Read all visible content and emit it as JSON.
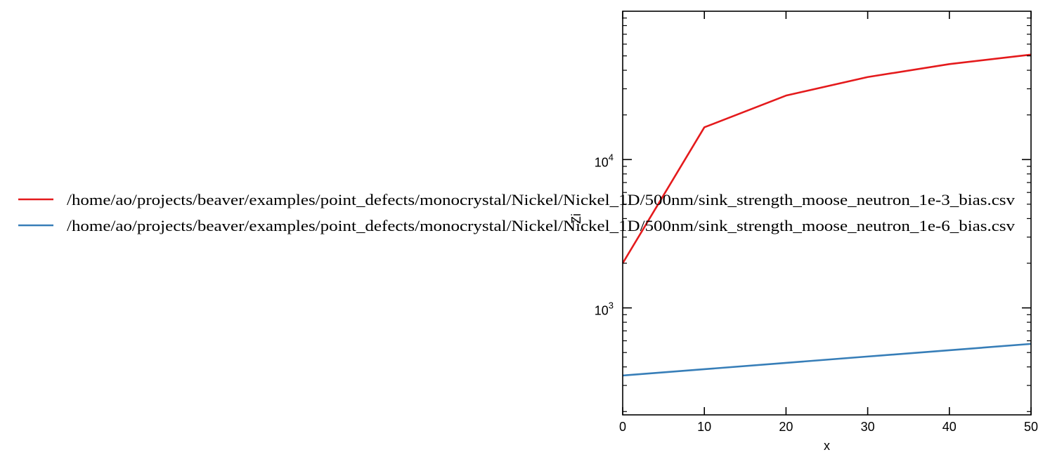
{
  "chart_data": {
    "type": "line",
    "xlabel": "x",
    "ylabel": "Zi",
    "xlim": [
      0,
      50
    ],
    "ylim": [
      190,
      100000
    ],
    "yscale": "log",
    "grid": false,
    "legend_position": "left",
    "x_ticks": [
      "0",
      "10",
      "20",
      "30",
      "40",
      "50"
    ],
    "y_ticks": [
      {
        "base": "10",
        "exp": "3",
        "value": 1000
      },
      {
        "base": "10",
        "exp": "4",
        "value": 10000
      }
    ],
    "series": [
      {
        "name": "/home/ao/projects/beaver/examples/point_defects/monocrystal/Nickel/Nickel_1D/500nm/sink_strength_moose_neutron_1e-3_bias.csv",
        "color": "#e41a1c",
        "x": [
          0,
          10,
          20,
          30,
          40,
          50
        ],
        "y": [
          2000,
          16500,
          27000,
          36000,
          44000,
          51000
        ]
      },
      {
        "name": "/home/ao/projects/beaver/examples/point_defects/monocrystal/Nickel/Nickel_1D/500nm/sink_strength_moose_neutron_1e-6_bias.csv",
        "color": "#377eb8",
        "x": [
          0,
          10,
          20,
          30,
          40,
          50
        ],
        "y": [
          350,
          386,
          426,
          470,
          518,
          572
        ]
      }
    ]
  }
}
